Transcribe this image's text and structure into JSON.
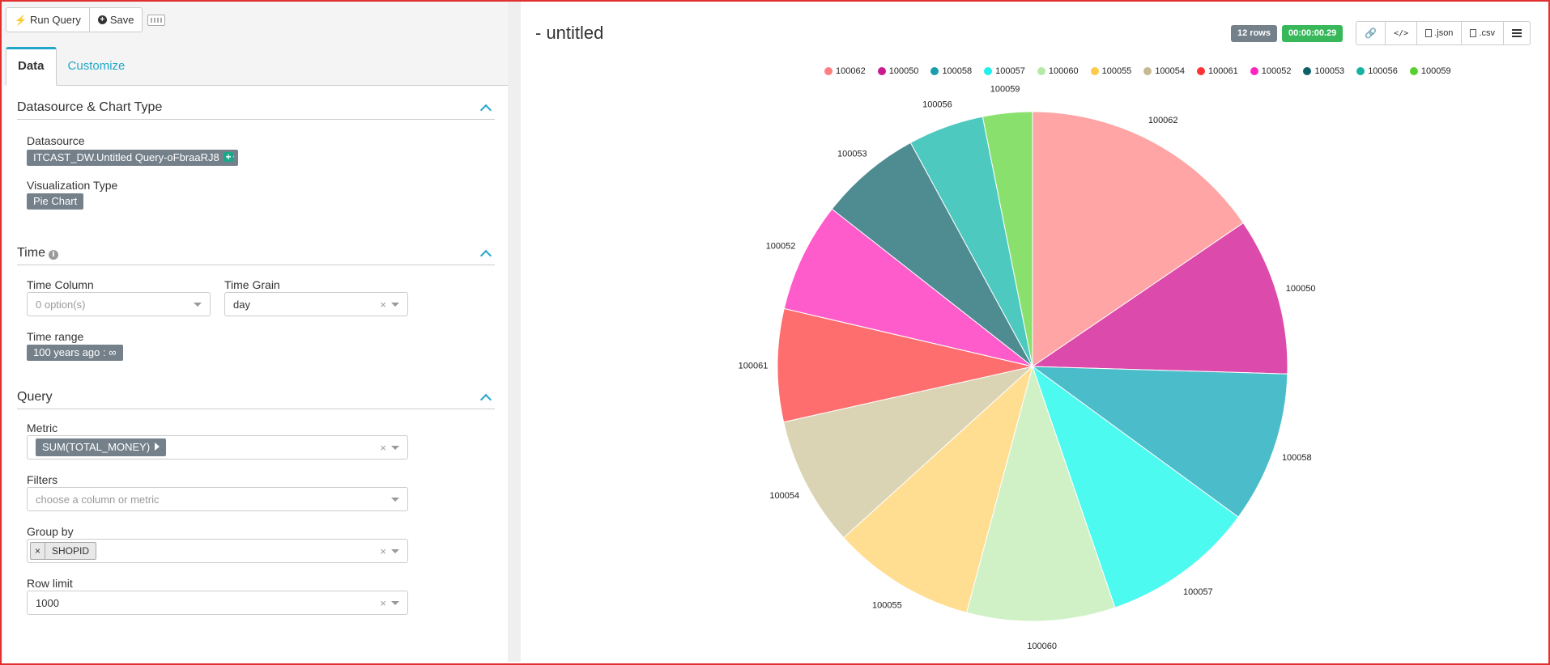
{
  "toolbar": {
    "run_label": "Run Query",
    "save_label": "Save"
  },
  "tabs": [
    {
      "label": "Data"
    },
    {
      "label": "Customize"
    }
  ],
  "sections": {
    "datasource": {
      "title": "Datasource & Chart Type",
      "datasource_label": "Datasource",
      "datasource_value": "ITCAST_DW.Untitled Query-oFbraaRJ8",
      "viz_label": "Visualization Type",
      "viz_value": "Pie Chart"
    },
    "time": {
      "title": "Time",
      "time_column_label": "Time Column",
      "time_column_placeholder": "0 option(s)",
      "time_grain_label": "Time Grain",
      "time_grain_value": "day",
      "time_range_label": "Time range",
      "time_range_value": "100 years ago : ∞"
    },
    "query": {
      "title": "Query",
      "metric_label": "Metric",
      "metric_value": "SUM(TOTAL_MONEY)",
      "filters_label": "Filters",
      "filters_placeholder": "choose a column or metric",
      "groupby_label": "Group by",
      "groupby_value": "SHOPID",
      "rowlimit_label": "Row limit",
      "rowlimit_value": "1000"
    }
  },
  "header": {
    "title": "- untitled",
    "rows_badge": "12 rows",
    "time_badge": "00:00:00.29",
    "json_label": ".json",
    "csv_label": ".csv"
  },
  "chart_data": {
    "type": "pie",
    "categories": [
      "100062",
      "100050",
      "100058",
      "100057",
      "100060",
      "100055",
      "100054",
      "100061",
      "100052",
      "100053",
      "100056",
      "100059"
    ],
    "values": [
      15.8,
      10.2,
      9.8,
      9.9,
      9.6,
      9.3,
      8.4,
      7.3,
      7.1,
      6.6,
      4.9,
      3.2
    ],
    "colors": [
      "#ffa5a5",
      "#dc4aab",
      "#4bbdca",
      "#4dfaef",
      "#d0f1c5",
      "#ffdd91",
      "#dad4b5",
      "#ff6e6e",
      "#ff5ccb",
      "#4e8c92",
      "#4ec9bf",
      "#89e06c"
    ],
    "legend_colors": [
      "#ff7f80",
      "#c71b8f",
      "#1a9dad",
      "#1ff0ec",
      "#b6e9a6",
      "#ffc94a",
      "#c6b991",
      "#ff3333",
      "#ff26c0",
      "#0d5f68",
      "#16b2a2",
      "#55d02e"
    ]
  }
}
